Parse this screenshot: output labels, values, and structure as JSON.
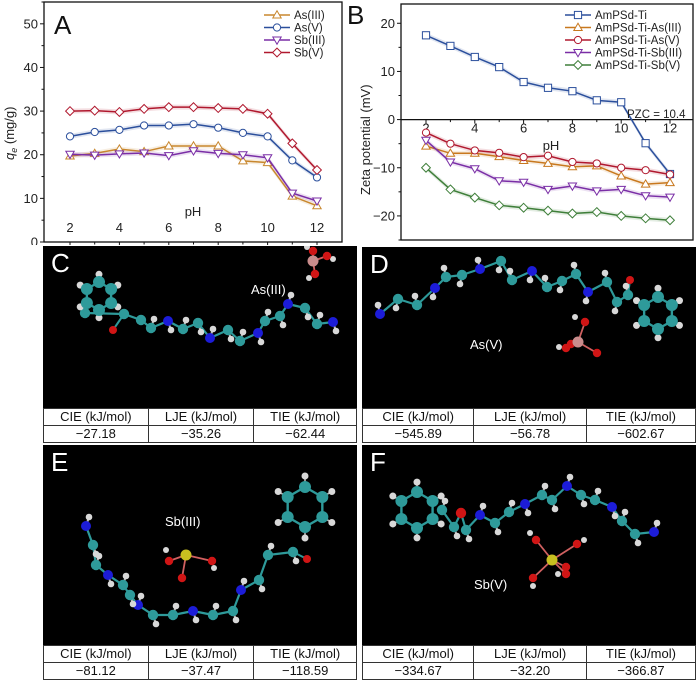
{
  "chart_data": [
    {
      "panel": "A",
      "type": "line",
      "title": "",
      "xlabel": "pH",
      "ylabel": "q_e (mg/g)",
      "ylabel_main": "q",
      "ylabel_sub": "e",
      "ylabel_unit": " (mg/g)",
      "xlim": [
        2,
        12
      ],
      "ylim": [
        0,
        55
      ],
      "x_ticks": [
        2,
        4,
        6,
        8,
        10,
        12
      ],
      "y_ticks": [
        0,
        10,
        20,
        30,
        40,
        50
      ],
      "legend_position": "top-right",
      "x": [
        2,
        3,
        4,
        5,
        6,
        7,
        8,
        9,
        10,
        11,
        12
      ],
      "series": [
        {
          "name": "As(III)",
          "color": "#c8872e",
          "marker": "triangle-up",
          "values": [
            19.7,
            20.3,
            21.3,
            20.7,
            22.0,
            22.0,
            22.0,
            18.6,
            18.2,
            10.5,
            8.3
          ]
        },
        {
          "name": "As(V)",
          "color": "#2b4f9c",
          "marker": "circle",
          "values": [
            24.2,
            25.2,
            25.7,
            26.7,
            26.7,
            27.0,
            26.2,
            25.0,
            24.2,
            18.7,
            14.8
          ]
        },
        {
          "name": "Sb(III)",
          "color": "#7a2ea6",
          "marker": "triangle-down",
          "values": [
            20.1,
            19.9,
            20.2,
            20.4,
            19.8,
            20.9,
            20.3,
            20.0,
            19.3,
            11.2,
            9.4
          ]
        },
        {
          "name": "Sb(V)",
          "color": "#b0182e",
          "marker": "diamond",
          "values": [
            30.0,
            30.1,
            29.8,
            30.5,
            30.9,
            30.9,
            30.7,
            30.5,
            29.4,
            22.6,
            16.5
          ]
        }
      ]
    },
    {
      "panel": "B",
      "type": "line",
      "title": "",
      "xlabel": "pH",
      "ylabel": "Zeta potential (mV)",
      "xlim": [
        2,
        12
      ],
      "ylim": [
        -25,
        24
      ],
      "x_ticks": [
        2,
        4,
        6,
        8,
        10,
        12
      ],
      "y_ticks": [
        -20,
        -10,
        0,
        10,
        20
      ],
      "legend_position": "top-right",
      "annotation": "PZC = 10.4",
      "x": [
        2,
        3,
        4,
        5,
        6,
        7,
        8,
        9,
        10,
        11,
        12
      ],
      "series": [
        {
          "name": "AmPSd-Ti",
          "color": "#2b4f9c",
          "marker": "square",
          "values": [
            17.5,
            15.3,
            13.0,
            10.9,
            7.8,
            6.6,
            5.9,
            4.0,
            3.6,
            -4.9,
            -11.3
          ]
        },
        {
          "name": "AmPSd-Ti-As(III)",
          "color": "#c8781e",
          "marker": "triangle-up",
          "values": [
            -5.5,
            -7.0,
            -7.0,
            -7.7,
            -8.5,
            -9.1,
            -9.8,
            -9.6,
            -11.7,
            -13.4,
            -13.1
          ]
        },
        {
          "name": "AmPSd-Ti-As(V)",
          "color": "#b0182e",
          "marker": "circle",
          "values": [
            -2.7,
            -5.0,
            -6.4,
            -6.9,
            -7.8,
            -7.5,
            -8.8,
            -9.1,
            -10.0,
            -10.5,
            -11.4
          ]
        },
        {
          "name": "AmPSd-Ti-Sb(III)",
          "color": "#7a2ea6",
          "marker": "triangle-down",
          "values": [
            -4.3,
            -8.8,
            -10.2,
            -12.7,
            -13.0,
            -14.5,
            -13.8,
            -14.8,
            -14.5,
            -15.8,
            -16.1
          ]
        },
        {
          "name": "AmPSd-Ti-Sb(V)",
          "color": "#3f7f3a",
          "marker": "diamond",
          "values": [
            -10.0,
            -14.5,
            -16.2,
            -17.8,
            -18.3,
            -18.9,
            -19.5,
            -19.2,
            -20.0,
            -20.5,
            -20.9
          ]
        }
      ]
    }
  ],
  "panels": {
    "A": {
      "letter": "A"
    },
    "B": {
      "letter": "B"
    },
    "C": {
      "letter": "C",
      "ion": "As(III)",
      "headers": [
        "CIE (kJ/mol)",
        "LJE (kJ/mol)",
        "TIE (kJ/mol)"
      ],
      "values": [
        "−27.18",
        "−35.26",
        "−62.44"
      ]
    },
    "D": {
      "letter": "D",
      "ion": "As(V)",
      "headers": [
        "CIE (kJ/mol)",
        "LJE (kJ/mol)",
        "TIE (kJ/mol)"
      ],
      "values": [
        "−545.89",
        "−56.78",
        "−602.67"
      ]
    },
    "E": {
      "letter": "E",
      "ion": "Sb(III)",
      "headers": [
        "CIE (kJ/mol)",
        "LJE (kJ/mol)",
        "TIE (kJ/mol)"
      ],
      "values": [
        "−81.12",
        "−37.47",
        "−118.59"
      ]
    },
    "F": {
      "letter": "F",
      "ion": "Sb(V)",
      "headers": [
        "CIE (kJ/mol)",
        "LJE (kJ/mol)",
        "TIE (kJ/mol)"
      ],
      "values": [
        "−334.67",
        "−32.20",
        "−366.87"
      ]
    }
  },
  "atom_colors": {
    "carbon": "#2e9a9a",
    "nitrogen": "#1c1cd8",
    "oxygen": "#d01515",
    "hydrogen": "#d8d8d8",
    "arsenic": "#c98c8c",
    "antimony": "#c8c020"
  }
}
